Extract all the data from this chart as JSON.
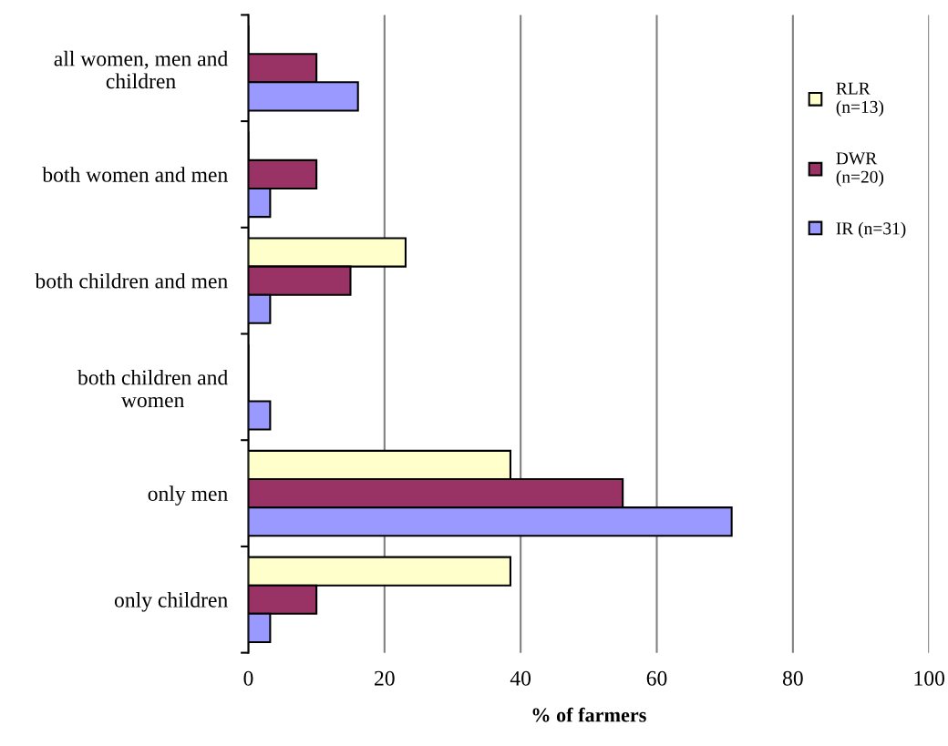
{
  "chart_data": {
    "type": "bar",
    "orientation": "horizontal",
    "xlabel": "% of farmers",
    "categories": [
      "all women, men and\nchildren",
      "both women and men",
      "both children and men",
      "both children and\nwomen",
      "only men",
      "only children"
    ],
    "series": [
      {
        "name": "RLR\n(n=13)",
        "color": "#ffffcc",
        "values": [
          0,
          0,
          23.1,
          0,
          38.5,
          38.5
        ]
      },
      {
        "name": "DWR\n(n=20)",
        "color": "#993366",
        "values": [
          10,
          10,
          15,
          0,
          55,
          10
        ]
      },
      {
        "name": "IR (n=31)",
        "color": "#9999ff",
        "values": [
          16.1,
          3.2,
          3.2,
          3.2,
          71,
          3.2
        ]
      }
    ],
    "xlim": [
      0,
      100
    ],
    "xticks": [
      0,
      20,
      40,
      60,
      80,
      100
    ],
    "grid": "x",
    "legend": "top right"
  }
}
